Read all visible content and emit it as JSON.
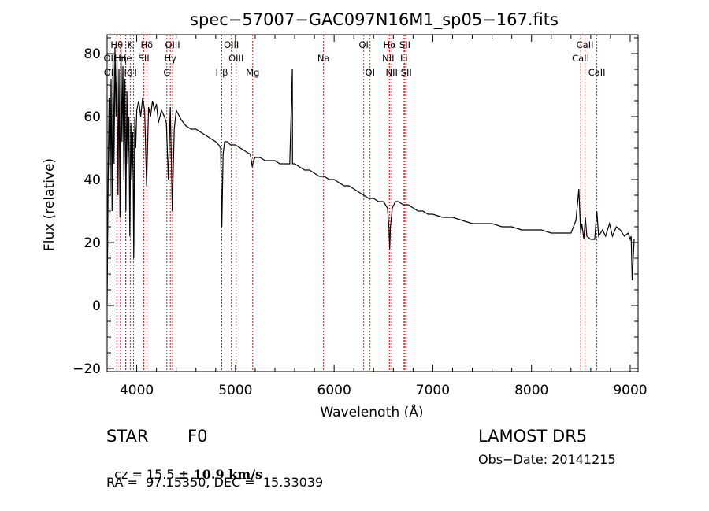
{
  "chart_data": {
    "type": "line",
    "title": "spec−57007−GAC097N16M1_sp05−167.fits",
    "xlabel": "Wavelength (Å)",
    "ylabel": "Flux (relative)",
    "xlim": [
      3700,
      9080
    ],
    "ylim": [
      -21,
      86
    ],
    "xticks": [
      4000,
      5000,
      6000,
      7000,
      8000,
      9000
    ],
    "yticks": [
      -20,
      0,
      20,
      40,
      60,
      80
    ],
    "ytick_labels": [
      "−20",
      "0",
      "20",
      "40",
      "60",
      "80"
    ],
    "line_color": "#000000",
    "marker_color": "#cc0000",
    "series": [
      {
        "x": [
          3700,
          3710,
          3720,
          3730,
          3740,
          3750,
          3760,
          3770,
          3780,
          3790,
          3800,
          3810,
          3820,
          3830,
          3840,
          3850,
          3860,
          3870,
          3880,
          3890,
          3900,
          3910,
          3920,
          3930,
          3940,
          3950,
          3960,
          3970,
          3980,
          3990,
          4000,
          4020,
          4040,
          4060,
          4080,
          4100,
          4120,
          4140,
          4160,
          4180,
          4200,
          4220,
          4250,
          4280,
          4300,
          4320,
          4340,
          4360,
          4380,
          4400,
          4450,
          4500,
          4550,
          4600,
          4650,
          4700,
          4750,
          4800,
          4830,
          4850,
          4862,
          4875,
          4890,
          4920,
          4950,
          5000,
          5050,
          5100,
          5150,
          5170,
          5183,
          5200,
          5250,
          5300,
          5350,
          5400,
          5450,
          5500,
          5550,
          5577,
          5578,
          5600,
          5650,
          5700,
          5750,
          5800,
          5850,
          5890,
          5900,
          5950,
          6000,
          6050,
          6100,
          6150,
          6200,
          6250,
          6300,
          6350,
          6400,
          6450,
          6500,
          6540,
          6555,
          6563,
          6570,
          6590,
          6620,
          6650,
          6700,
          6750,
          6800,
          6850,
          6900,
          6950,
          7000,
          7100,
          7200,
          7300,
          7400,
          7500,
          7600,
          7700,
          7800,
          7900,
          8000,
          8100,
          8200,
          8300,
          8400,
          8450,
          8480,
          8498,
          8510,
          8530,
          8545,
          8560,
          8600,
          8640,
          8662,
          8680,
          8720,
          8750,
          8790,
          8820,
          8860,
          8900,
          8940,
          8980,
          9000,
          9010,
          9020,
          9040
        ],
        "y": [
          0,
          40,
          66,
          35,
          72,
          30,
          80,
          45,
          82,
          60,
          78,
          35,
          75,
          28,
          83,
          52,
          76,
          40,
          72,
          30,
          68,
          45,
          60,
          22,
          58,
          40,
          55,
          15,
          60,
          50,
          62,
          65,
          60,
          66,
          62,
          38,
          63,
          60,
          65,
          62,
          64,
          58,
          62,
          60,
          58,
          40,
          63,
          30,
          56,
          62,
          59,
          57,
          56,
          56,
          55,
          54,
          53,
          52,
          51,
          50,
          25,
          48,
          52,
          52,
          51,
          51,
          50,
          49,
          48,
          44,
          46,
          47,
          47,
          46,
          46,
          46,
          45,
          45,
          45,
          75,
          45,
          45,
          44,
          43,
          43,
          42,
          41,
          41,
          41,
          40,
          40,
          39,
          38,
          38,
          37,
          36,
          35,
          34,
          34,
          33,
          33,
          31,
          25,
          18,
          25,
          31,
          33,
          33,
          32,
          32,
          31,
          30,
          30,
          29,
          29,
          28,
          28,
          27,
          26,
          26,
          26,
          25,
          25,
          24,
          24,
          24,
          23,
          23,
          23,
          27,
          37,
          23,
          26,
          21,
          28,
          22,
          21,
          21,
          30,
          22,
          24,
          22,
          26,
          22,
          25,
          24,
          22,
          23,
          21,
          22,
          8,
          21
        ]
      }
    ],
    "lines": [
      {
        "name": "Hθ",
        "x": 3798,
        "row": 0
      },
      {
        "name": "K",
        "x": 3934,
        "row": 0
      },
      {
        "name": "Hδ",
        "x": 4102,
        "row": 0
      },
      {
        "name": "OIII",
        "x": 4363,
        "row": 0
      },
      {
        "name": "OIII",
        "x": 4959,
        "row": 0
      },
      {
        "name": "OI",
        "x": 6300,
        "row": 0
      },
      {
        "name": "Hα",
        "x": 6563,
        "row": 0
      },
      {
        "name": "SII",
        "x": 6717,
        "row": 0
      },
      {
        "name": "CaII",
        "x": 8542,
        "row": 0
      },
      {
        "name": "OII",
        "x": 3727,
        "row": 1
      },
      {
        "name": "Hη",
        "x": 3835,
        "row": 1
      },
      {
        "name": "He",
        "x": 3889,
        "row": 1
      },
      {
        "name": "SII",
        "x": 4072,
        "row": 1
      },
      {
        "name": "Hγ",
        "x": 4340,
        "row": 1
      },
      {
        "name": "OIII",
        "x": 5007,
        "row": 1
      },
      {
        "name": "Na",
        "x": 5893,
        "row": 1
      },
      {
        "name": "NII",
        "x": 6548,
        "row": 1
      },
      {
        "name": "Li",
        "x": 6708,
        "row": 1
      },
      {
        "name": "CaII",
        "x": 8498,
        "row": 1
      },
      {
        "name": "OII",
        "x": 3729,
        "row": 2
      },
      {
        "name": "Hζ",
        "x": 3889,
        "row": 2
      },
      {
        "name": "H",
        "x": 3968,
        "row": 2
      },
      {
        "name": "G",
        "x": 4305,
        "row": 2
      },
      {
        "name": "Hβ",
        "x": 4861,
        "row": 2
      },
      {
        "name": "Mg",
        "x": 5175,
        "row": 2
      },
      {
        "name": "OI",
        "x": 6364,
        "row": 2
      },
      {
        "name": "NII",
        "x": 6583,
        "row": 2
      },
      {
        "name": "SII",
        "x": 6731,
        "row": 2
      },
      {
        "name": "CaII",
        "x": 8662,
        "row": 2
      }
    ]
  },
  "info": {
    "class": "STAR",
    "subclass": "F0",
    "survey": "LAMOST DR5",
    "cz_prefix": "cz = 15.5 ",
    "cz_pm": "±",
    "cz_value": " 10.9 km/s",
    "obs_date": "Obs−Date: 20141215",
    "radec": "RA =  97.15350, DEC =  15.33039"
  }
}
